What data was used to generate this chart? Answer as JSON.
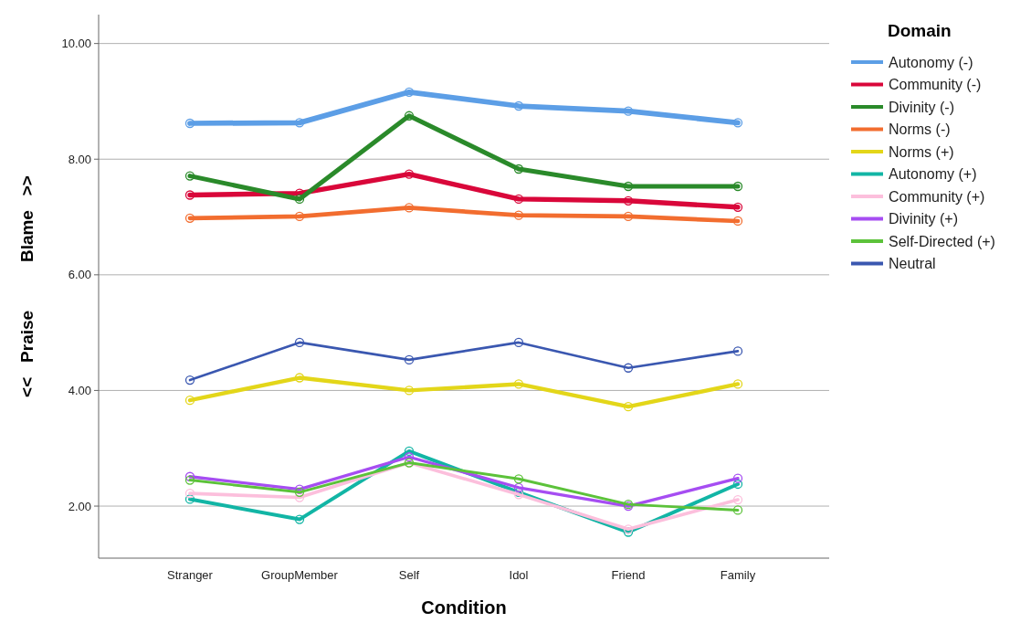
{
  "chart_data": {
    "type": "line",
    "xlabel": "Condition",
    "ylabel": "<<   Praise          Blame   >>",
    "legend_title": "Domain",
    "legend": "right",
    "grid": "y",
    "marker": "circle",
    "line_style": "solid",
    "categories": [
      "Stranger",
      "GroupMember",
      "Self",
      "Idol",
      "Friend",
      "Family"
    ],
    "ylim": [
      1.1,
      10.5
    ],
    "yticks": [
      {
        "value": 2,
        "label": "2.00"
      },
      {
        "value": 4,
        "label": "4.00"
      },
      {
        "value": 6,
        "label": "6.00"
      },
      {
        "value": 8,
        "label": "8.00"
      },
      {
        "value": 10,
        "label": "10.00"
      }
    ],
    "series": [
      {
        "name": "Autonomy (-)",
        "color": "#5c9ee6",
        "values": [
          8.62,
          8.63,
          9.16,
          8.92,
          8.83,
          8.63
        ]
      },
      {
        "name": "Community (-)",
        "color": "#d9073a",
        "values": [
          7.38,
          7.41,
          7.74,
          7.31,
          7.28,
          7.17
        ]
      },
      {
        "name": "Divinity (-)",
        "color": "#2a8a2a",
        "values": [
          7.71,
          7.31,
          8.75,
          7.83,
          7.53,
          7.53
        ]
      },
      {
        "name": "Norms (-)",
        "color": "#f26d2f",
        "values": [
          6.98,
          7.01,
          7.16,
          7.03,
          7.01,
          6.93
        ]
      },
      {
        "name": "Norms (+)",
        "color": "#e3d619",
        "values": [
          3.83,
          4.22,
          4.0,
          4.11,
          3.72,
          4.11
        ]
      },
      {
        "name": "Autonomy (+)",
        "color": "#12b5a5",
        "values": [
          2.12,
          1.77,
          2.95,
          2.24,
          1.55,
          2.38
        ]
      },
      {
        "name": "Community (+)",
        "color": "#fcbfdc",
        "values": [
          2.22,
          2.15,
          2.75,
          2.2,
          1.6,
          2.11
        ]
      },
      {
        "name": "Divinity (+)",
        "color": "#a64df2",
        "values": [
          2.51,
          2.29,
          2.85,
          2.32,
          2.0,
          2.48
        ]
      },
      {
        "name": "Self-Directed (+)",
        "color": "#5cc23a",
        "values": [
          2.45,
          2.24,
          2.75,
          2.47,
          2.03,
          1.93
        ]
      },
      {
        "name": "Neutral",
        "color": "#3a57b0",
        "values": [
          4.18,
          4.83,
          4.53,
          4.83,
          4.39,
          4.68
        ]
      }
    ]
  }
}
